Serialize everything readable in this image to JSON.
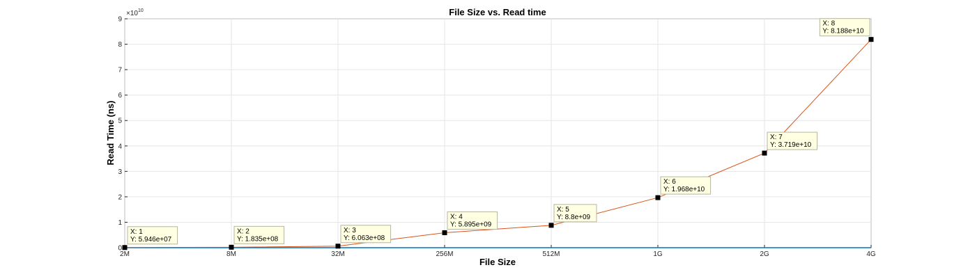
{
  "chart_data": {
    "type": "line",
    "title": "File Size vs. Read time",
    "xlabel": "File Size",
    "ylabel": "Read Time (ns)",
    "y_exponent_label": "×10",
    "y_exponent_power": "10",
    "categories": [
      "2M",
      "8M",
      "32M",
      "256M",
      "512M",
      "1G",
      "2G",
      "4G"
    ],
    "x": [
      1,
      2,
      3,
      4,
      5,
      6,
      7,
      8
    ],
    "values": [
      59460000,
      183500000,
      606300000,
      5895000000,
      8800000000,
      19680000000,
      37190000000,
      81880000000
    ],
    "yticks": [
      0,
      1,
      2,
      3,
      4,
      5,
      6,
      7,
      8,
      9
    ],
    "ytick_scale": 10000000000,
    "xlim": [
      1,
      8
    ],
    "ylim": [
      0,
      90000000000
    ],
    "grid": true,
    "datatips": [
      {
        "x": "X: 1",
        "y": "Y: 5.946e+07"
      },
      {
        "x": "X: 2",
        "y": "Y: 1.835e+08"
      },
      {
        "x": "X: 3",
        "y": "Y: 6.063e+08"
      },
      {
        "x": "X: 4",
        "y": "Y: 5.895e+09"
      },
      {
        "x": "X: 5",
        "y": "Y: 8.8e+09"
      },
      {
        "x": "X: 6",
        "y": "Y: 1.968e+10"
      },
      {
        "x": "X: 7",
        "y": "Y: 3.719e+10"
      },
      {
        "x": "X: 8",
        "y": "Y: 8.188e+10"
      }
    ],
    "colors": {
      "line": "#d95319",
      "title": "#ff0000",
      "axis_label": "#0072bd",
      "x_axis_line": "#0072bd",
      "grid": "#e6e6e6",
      "marker": "#000000",
      "datatip_bg": "#ffffe1"
    }
  }
}
